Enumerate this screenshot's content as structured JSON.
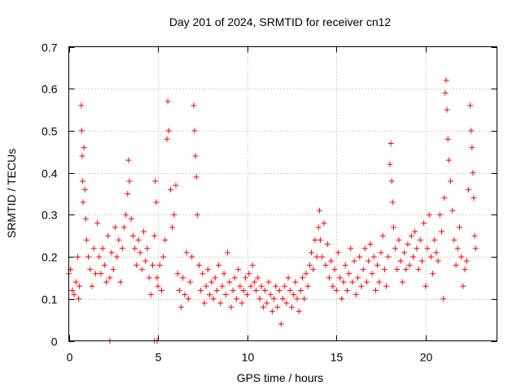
{
  "chart_data": {
    "type": "scatter",
    "title": "Day 201 of 2024, SRMTID for receiver cn12",
    "xlabel": "GPS time / hours",
    "ylabel": "SRMTID / TECUs",
    "xlim": [
      0,
      24
    ],
    "ylim": [
      0,
      0.7
    ],
    "x_ticks": [
      0,
      5,
      10,
      15,
      20
    ],
    "x_tick_labels": [
      "0",
      "5",
      "10",
      "15",
      "20"
    ],
    "y_ticks": [
      0,
      0.1,
      0.2,
      0.3,
      0.4,
      0.5,
      0.6,
      0.7
    ],
    "y_tick_labels": [
      "0",
      "0.1",
      "0.2",
      "0.3",
      "0.4",
      "0.5",
      "0.6",
      "0.7"
    ],
    "grid": true,
    "marker": "+",
    "series_color": "#ff0000",
    "series": [
      {
        "name": "SRMTID",
        "points": [
          [
            0.0,
            0.16
          ],
          [
            0.1,
            0.17
          ],
          [
            0.2,
            0.12
          ],
          [
            0.3,
            0.11
          ],
          [
            0.4,
            0.14
          ],
          [
            0.5,
            0.2
          ],
          [
            0.55,
            0.1
          ],
          [
            0.6,
            0.13
          ],
          [
            0.7,
            0.56
          ],
          [
            0.72,
            0.5
          ],
          [
            0.75,
            0.44
          ],
          [
            0.78,
            0.38
          ],
          [
            0.8,
            0.33
          ],
          [
            0.85,
            0.46
          ],
          [
            0.9,
            0.36
          ],
          [
            0.95,
            0.29
          ],
          [
            1.0,
            0.24
          ],
          [
            1.1,
            0.2
          ],
          [
            1.2,
            0.17
          ],
          [
            1.3,
            0.13
          ],
          [
            1.4,
            0.22
          ],
          [
            1.5,
            0.16
          ],
          [
            1.6,
            0.28
          ],
          [
            1.7,
            0.2
          ],
          [
            1.8,
            0.16
          ],
          [
            1.9,
            0.22
          ],
          [
            2.0,
            0.18
          ],
          [
            2.1,
            0.14
          ],
          [
            2.2,
            0.25
          ],
          [
            2.3,
            0.15
          ],
          [
            2.4,
            0.21
          ],
          [
            2.5,
            0.17
          ],
          [
            2.6,
            0.27
          ],
          [
            2.7,
            0.2
          ],
          [
            2.8,
            0.24
          ],
          [
            2.9,
            0.14
          ],
          [
            3.0,
            0.22
          ],
          [
            3.1,
            0.27
          ],
          [
            3.2,
            0.3
          ],
          [
            3.3,
            0.35
          ],
          [
            3.35,
            0.43
          ],
          [
            3.4,
            0.38
          ],
          [
            3.5,
            0.29
          ],
          [
            3.6,
            0.25
          ],
          [
            3.7,
            0.22
          ],
          [
            3.8,
            0.18
          ],
          [
            3.9,
            0.24
          ],
          [
            4.0,
            0.21
          ],
          [
            4.1,
            0.17
          ],
          [
            4.2,
            0.26
          ],
          [
            4.3,
            0.19
          ],
          [
            4.4,
            0.22
          ],
          [
            4.5,
            0.15
          ],
          [
            4.6,
            0.11
          ],
          [
            4.7,
            0.18
          ],
          [
            4.8,
            0.25
          ],
          [
            4.85,
            0.38
          ],
          [
            4.9,
            0.33
          ],
          [
            4.95,
            0.15
          ],
          [
            5.0,
            0.13
          ],
          [
            5.1,
            0.18
          ],
          [
            5.2,
            0.12
          ],
          [
            5.3,
            0.2
          ],
          [
            5.4,
            0.24
          ],
          [
            5.5,
            0.48
          ],
          [
            5.55,
            0.57
          ],
          [
            5.6,
            0.5
          ],
          [
            5.7,
            0.36
          ],
          [
            5.8,
            0.27
          ],
          [
            5.9,
            0.3
          ],
          [
            6.0,
            0.37
          ],
          [
            6.1,
            0.16
          ],
          [
            6.2,
            0.12
          ],
          [
            6.3,
            0.08
          ],
          [
            6.4,
            0.15
          ],
          [
            6.5,
            0.11
          ],
          [
            6.6,
            0.21
          ],
          [
            6.7,
            0.1
          ],
          [
            6.8,
            0.14
          ],
          [
            6.9,
            0.2
          ],
          [
            7.0,
            0.56
          ],
          [
            7.05,
            0.5
          ],
          [
            7.1,
            0.44
          ],
          [
            7.15,
            0.39
          ],
          [
            7.2,
            0.3
          ],
          [
            7.3,
            0.18
          ],
          [
            7.4,
            0.12
          ],
          [
            7.5,
            0.16
          ],
          [
            7.6,
            0.09
          ],
          [
            7.7,
            0.13
          ],
          [
            7.8,
            0.17
          ],
          [
            7.9,
            0.11
          ],
          [
            8.0,
            0.14
          ],
          [
            8.1,
            0.1
          ],
          [
            8.2,
            0.15
          ],
          [
            8.3,
            0.12
          ],
          [
            8.4,
            0.18
          ],
          [
            8.5,
            0.09
          ],
          [
            8.6,
            0.13
          ],
          [
            8.7,
            0.16
          ],
          [
            8.8,
            0.11
          ],
          [
            8.9,
            0.21
          ],
          [
            9.0,
            0.14
          ],
          [
            9.1,
            0.08
          ],
          [
            9.2,
            0.12
          ],
          [
            9.3,
            0.15
          ],
          [
            9.4,
            0.1
          ],
          [
            9.5,
            0.17
          ],
          [
            9.6,
            0.13
          ],
          [
            9.7,
            0.09
          ],
          [
            9.8,
            0.12
          ],
          [
            9.9,
            0.15
          ],
          [
            10.0,
            0.11
          ],
          [
            10.1,
            0.16
          ],
          [
            10.2,
            0.13
          ],
          [
            10.3,
            0.18
          ],
          [
            10.4,
            0.14
          ],
          [
            10.5,
            0.12
          ],
          [
            10.6,
            0.15
          ],
          [
            10.7,
            0.1
          ],
          [
            10.8,
            0.13
          ],
          [
            10.9,
            0.08
          ],
          [
            11.0,
            0.12
          ],
          [
            11.1,
            0.09
          ],
          [
            11.2,
            0.14
          ],
          [
            11.3,
            0.11
          ],
          [
            11.4,
            0.07
          ],
          [
            11.5,
            0.1
          ],
          [
            11.6,
            0.13
          ],
          [
            11.7,
            0.08
          ],
          [
            11.8,
            0.12
          ],
          [
            11.9,
            0.04
          ],
          [
            12.0,
            0.1
          ],
          [
            12.1,
            0.13
          ],
          [
            12.2,
            0.09
          ],
          [
            12.3,
            0.15
          ],
          [
            12.4,
            0.12
          ],
          [
            12.5,
            0.08
          ],
          [
            12.6,
            0.11
          ],
          [
            12.7,
            0.14
          ],
          [
            12.8,
            0.1
          ],
          [
            12.9,
            0.07
          ],
          [
            13.0,
            0.12
          ],
          [
            13.1,
            0.15
          ],
          [
            13.2,
            0.1
          ],
          [
            13.3,
            0.16
          ],
          [
            13.4,
            0.13
          ],
          [
            13.5,
            0.18
          ],
          [
            13.6,
            0.21
          ],
          [
            13.7,
            0.17
          ],
          [
            13.8,
            0.24
          ],
          [
            13.9,
            0.2
          ],
          [
            14.0,
            0.27
          ],
          [
            14.05,
            0.31
          ],
          [
            14.1,
            0.24
          ],
          [
            14.2,
            0.2
          ],
          [
            14.3,
            0.28
          ],
          [
            14.4,
            0.18
          ],
          [
            14.5,
            0.23
          ],
          [
            14.6,
            0.15
          ],
          [
            14.7,
            0.19
          ],
          [
            14.8,
            0.13
          ],
          [
            14.9,
            0.17
          ],
          [
            15.0,
            0.12
          ],
          [
            15.1,
            0.21
          ],
          [
            15.2,
            0.15
          ],
          [
            15.3,
            0.1
          ],
          [
            15.4,
            0.14
          ],
          [
            15.5,
            0.18
          ],
          [
            15.6,
            0.12
          ],
          [
            15.7,
            0.16
          ],
          [
            15.8,
            0.22
          ],
          [
            15.9,
            0.14
          ],
          [
            16.0,
            0.19
          ],
          [
            16.1,
            0.11
          ],
          [
            16.2,
            0.15
          ],
          [
            16.3,
            0.2
          ],
          [
            16.4,
            0.13
          ],
          [
            16.5,
            0.17
          ],
          [
            16.6,
            0.22
          ],
          [
            16.7,
            0.14
          ],
          [
            16.8,
            0.19
          ],
          [
            16.9,
            0.23
          ],
          [
            17.0,
            0.16
          ],
          [
            17.1,
            0.2
          ],
          [
            17.2,
            0.12
          ],
          [
            17.3,
            0.18
          ],
          [
            17.4,
            0.14
          ],
          [
            17.5,
            0.21
          ],
          [
            17.6,
            0.25
          ],
          [
            17.7,
            0.17
          ],
          [
            17.8,
            0.13
          ],
          [
            17.9,
            0.2
          ],
          [
            18.0,
            0.42
          ],
          [
            18.05,
            0.47
          ],
          [
            18.1,
            0.38
          ],
          [
            18.15,
            0.33
          ],
          [
            18.2,
            0.27
          ],
          [
            18.3,
            0.22
          ],
          [
            18.4,
            0.17
          ],
          [
            18.5,
            0.24
          ],
          [
            18.6,
            0.19
          ],
          [
            18.7,
            0.14
          ],
          [
            18.8,
            0.21
          ],
          [
            18.9,
            0.17
          ],
          [
            19.0,
            0.23
          ],
          [
            19.1,
            0.18
          ],
          [
            19.2,
            0.25
          ],
          [
            19.3,
            0.2
          ],
          [
            19.4,
            0.26
          ],
          [
            19.5,
            0.22
          ],
          [
            19.6,
            0.17
          ],
          [
            19.7,
            0.24
          ],
          [
            19.8,
            0.19
          ],
          [
            19.9,
            0.28
          ],
          [
            20.0,
            0.13
          ],
          [
            20.1,
            0.22
          ],
          [
            20.2,
            0.3
          ],
          [
            20.3,
            0.2
          ],
          [
            20.4,
            0.16
          ],
          [
            20.5,
            0.24
          ],
          [
            20.6,
            0.21
          ],
          [
            20.7,
            0.19
          ],
          [
            20.8,
            0.3
          ],
          [
            20.9,
            0.26
          ],
          [
            21.0,
            0.1
          ],
          [
            21.05,
            0.34
          ],
          [
            21.1,
            0.59
          ],
          [
            21.15,
            0.62
          ],
          [
            21.2,
            0.55
          ],
          [
            21.25,
            0.48
          ],
          [
            21.3,
            0.43
          ],
          [
            21.4,
            0.38
          ],
          [
            21.5,
            0.31
          ],
          [
            21.6,
            0.24
          ],
          [
            21.7,
            0.18
          ],
          [
            21.8,
            0.22
          ],
          [
            21.9,
            0.27
          ],
          [
            22.0,
            0.2
          ],
          [
            22.1,
            0.13
          ],
          [
            22.2,
            0.17
          ],
          [
            22.3,
            0.19
          ],
          [
            22.4,
            0.36
          ],
          [
            22.5,
            0.56
          ],
          [
            22.55,
            0.5
          ],
          [
            22.6,
            0.46
          ],
          [
            22.65,
            0.4
          ],
          [
            22.7,
            0.34
          ],
          [
            22.75,
            0.25
          ],
          [
            22.8,
            0.22
          ],
          [
            2.3,
            0.0
          ],
          [
            4.8,
            0.0
          ],
          [
            4.95,
            0.0
          ]
        ]
      }
    ]
  }
}
